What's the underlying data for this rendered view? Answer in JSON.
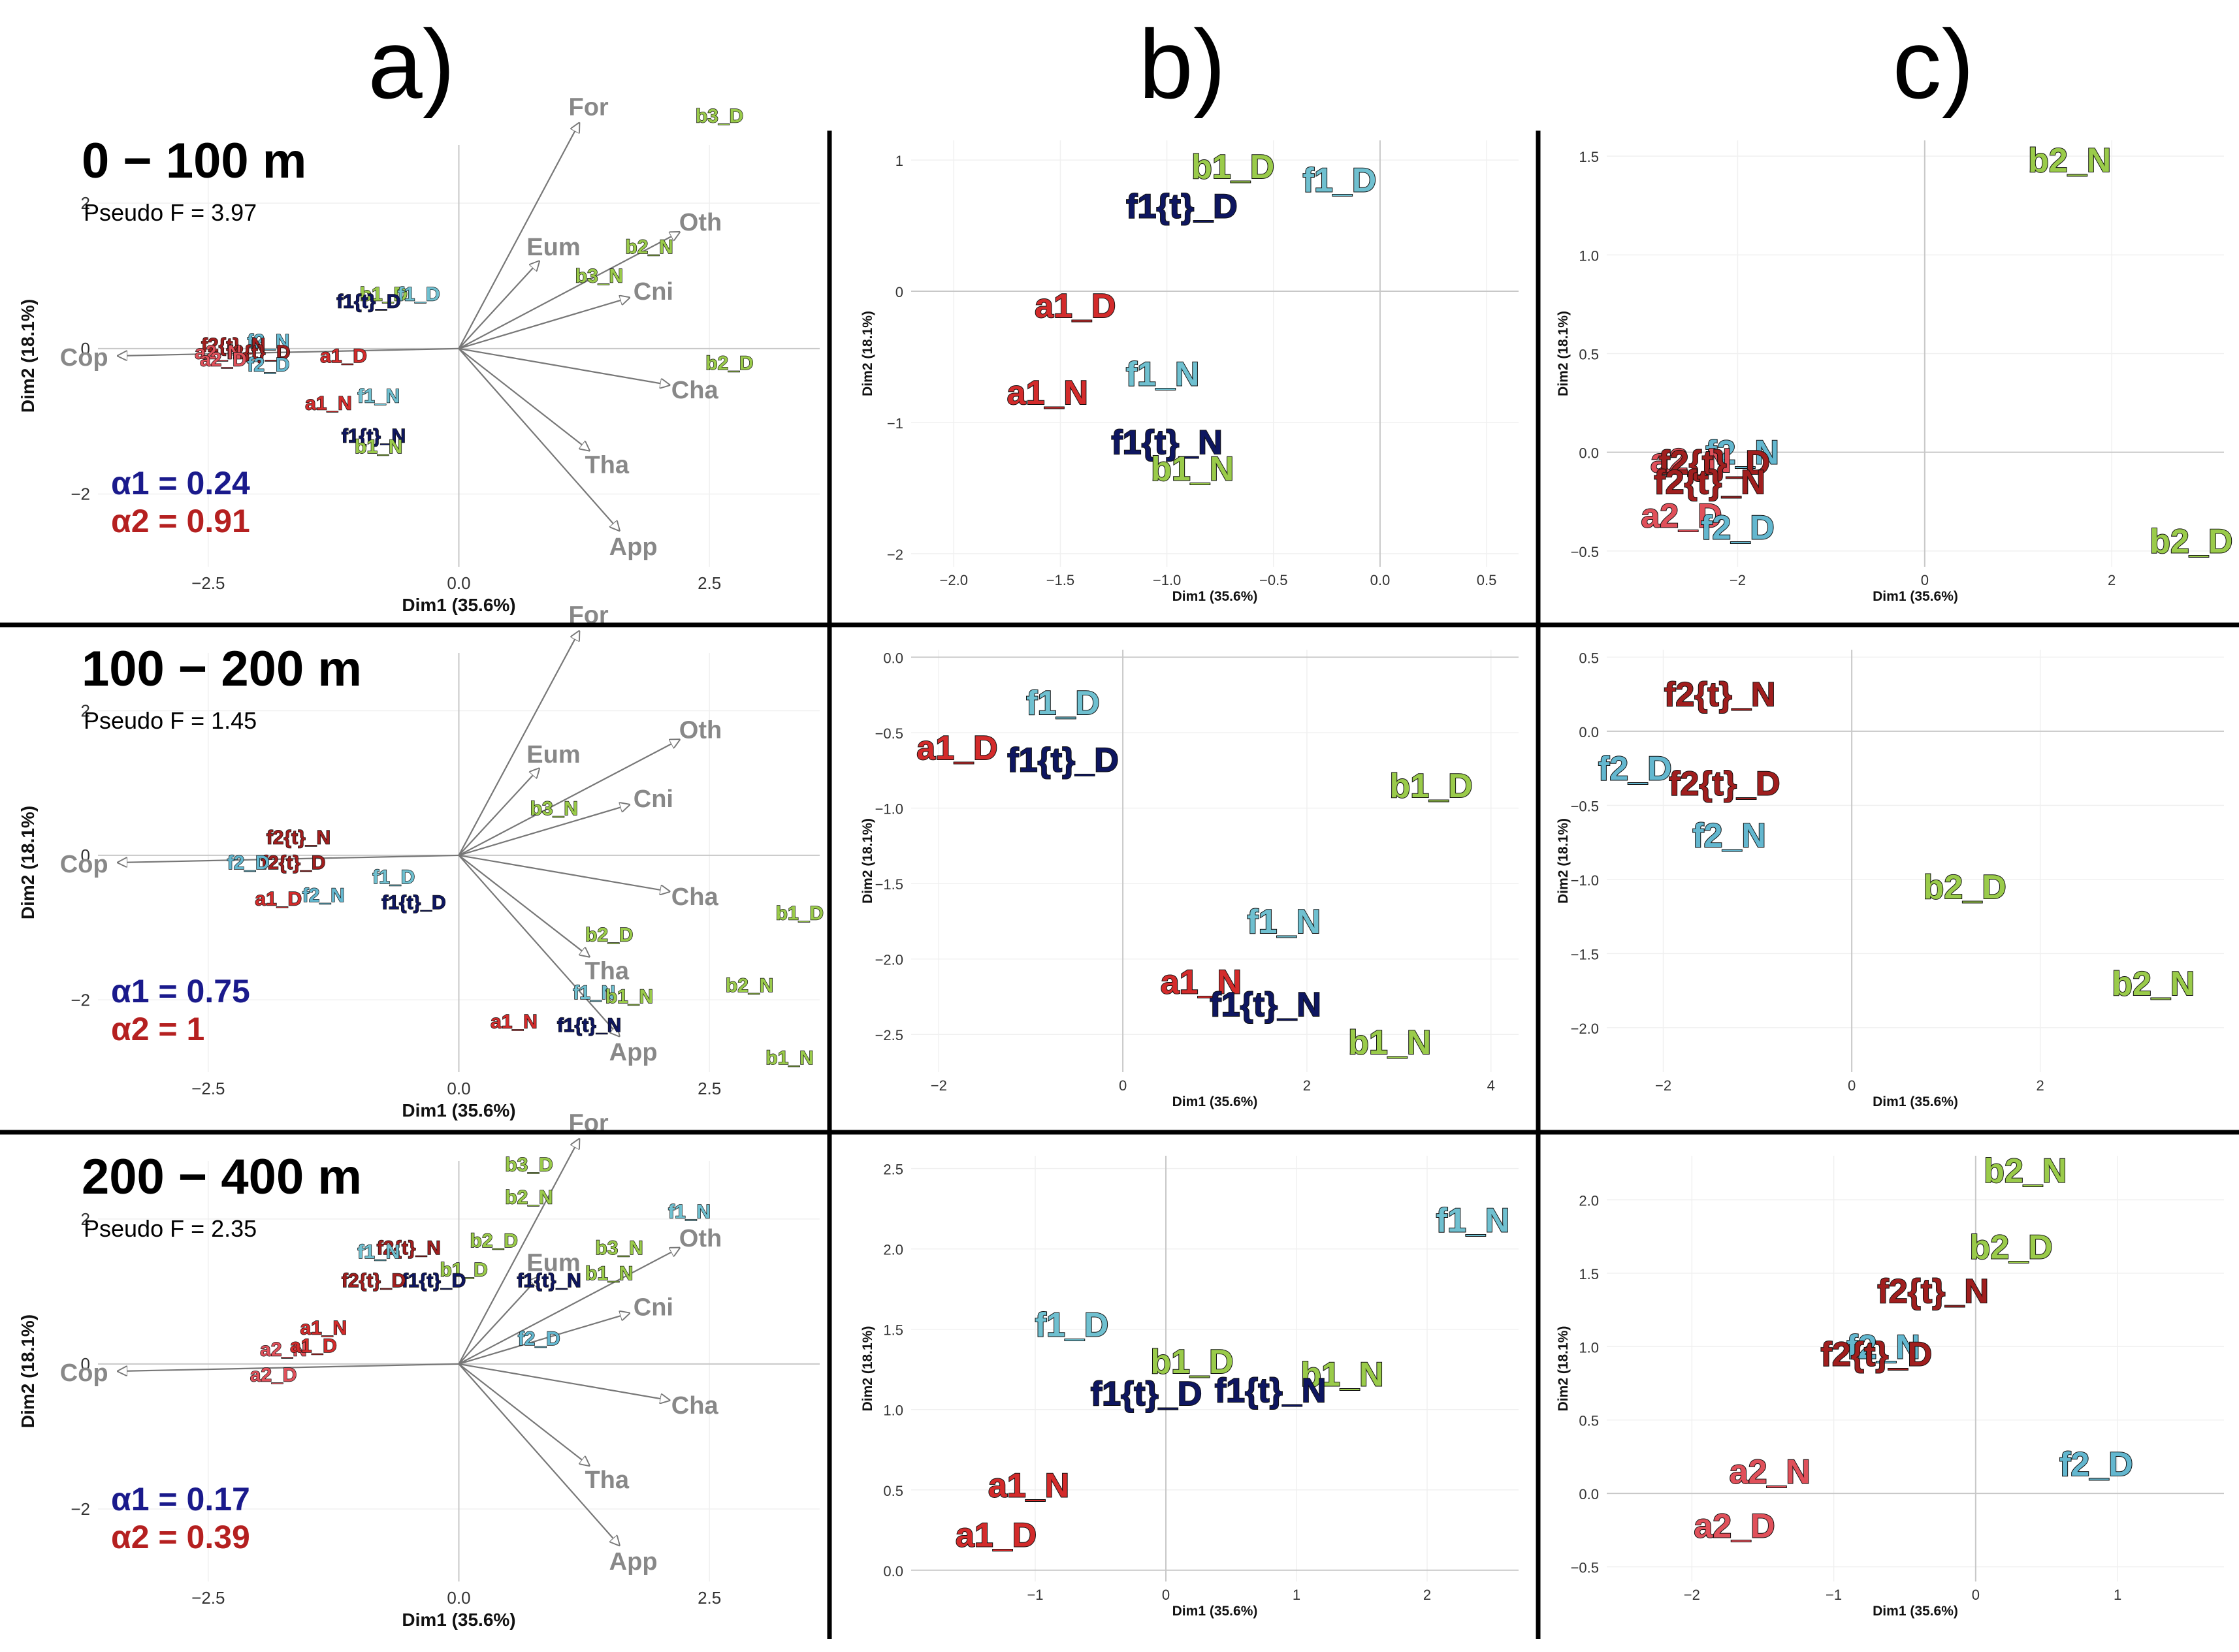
{
  "column_headers": [
    "a)",
    "b)",
    "c)"
  ],
  "colors": {
    "a1": "#d32b2b",
    "a2": "#e0505a",
    "f1": "#6fc0d0",
    "f1t": "#0e1660",
    "f2": "#63b7cf",
    "f2t": "#a01e1e",
    "b": "#9acb4a",
    "vector": "#888888",
    "alpha1": "#1a1a8c",
    "alpha2": "#b52020"
  },
  "chart_data": [
    {
      "id": "a_0_100",
      "type": "scatter",
      "subtype": "biplot",
      "title": "0 − 100 m",
      "pseudo_f": "Pseudo F = 3.97",
      "alpha1": "α1 = 0.24",
      "alpha2": "α2 = 0.91",
      "xlabel": "Dim1 (35.6%)",
      "ylabel": "Dim2 (18.1%)",
      "xlim": [
        -3.6,
        3.6
      ],
      "ylim": [
        -3.0,
        2.8
      ],
      "xticks": [
        -2.5,
        0.0,
        2.5
      ],
      "xtick_labels": [
        "−2.5",
        "0.0",
        "2.5"
      ],
      "yticks": [
        2,
        0,
        -2
      ],
      "ytick_labels": [
        "2",
        "0",
        "−2"
      ],
      "vectors": [
        {
          "label": "For",
          "x": 1.2,
          "y": 3.1
        },
        {
          "label": "Eum",
          "x": 0.8,
          "y": 1.2
        },
        {
          "label": "Oth",
          "x": 2.2,
          "y": 1.6
        },
        {
          "label": "Cni",
          "x": 1.7,
          "y": 0.7
        },
        {
          "label": "Cha",
          "x": 2.1,
          "y": -0.5
        },
        {
          "label": "Tha",
          "x": 1.3,
          "y": -1.4
        },
        {
          "label": "App",
          "x": 1.6,
          "y": -2.5
        },
        {
          "label": "Cop",
          "x": -3.4,
          "y": -0.1
        }
      ],
      "points": [
        {
          "label": "b3_D",
          "x": 2.6,
          "y": 3.2,
          "g": "b"
        },
        {
          "label": "b2_N",
          "x": 1.9,
          "y": 1.4,
          "g": "b"
        },
        {
          "label": "b3_N",
          "x": 1.4,
          "y": 1.0,
          "g": "b"
        },
        {
          "label": "b2_D",
          "x": 2.7,
          "y": -0.2,
          "g": "b"
        },
        {
          "label": "b1_D",
          "x": -0.75,
          "y": 0.75,
          "g": "b"
        },
        {
          "label": "f1_D",
          "x": -0.4,
          "y": 0.75,
          "g": "f1"
        },
        {
          "label": "f1{t}_D",
          "x": -0.9,
          "y": 0.65,
          "g": "f1t"
        },
        {
          "label": "a1_D",
          "x": -1.15,
          "y": -0.1,
          "g": "a1"
        },
        {
          "label": "a1_N",
          "x": -1.3,
          "y": -0.75,
          "g": "a1"
        },
        {
          "label": "f1_N",
          "x": -0.8,
          "y": -0.65,
          "g": "f1"
        },
        {
          "label": "f1{t}_N",
          "x": -0.85,
          "y": -1.2,
          "g": "f1t"
        },
        {
          "label": "b1_N",
          "x": -0.8,
          "y": -1.35,
          "g": "b"
        },
        {
          "label": "f2_N",
          "x": -1.9,
          "y": 0.1,
          "g": "f2"
        },
        {
          "label": "f2{t}_N",
          "x": -2.25,
          "y": 0.05,
          "g": "f2t"
        },
        {
          "label": "f2{t}_D",
          "x": -2.0,
          "y": -0.05,
          "g": "f2t"
        },
        {
          "label": "a2_N",
          "x": -2.4,
          "y": -0.05,
          "g": "a2"
        },
        {
          "label": "a2_D",
          "x": -2.35,
          "y": -0.15,
          "g": "a2"
        },
        {
          "label": "f2_D",
          "x": -1.9,
          "y": -0.22,
          "g": "f2"
        }
      ]
    },
    {
      "id": "b_0_100",
      "type": "scatter",
      "xlabel": "Dim1 (35.6%)",
      "ylabel": "Dim2 (18.1%)",
      "xlim": [
        -2.2,
        0.65
      ],
      "ylim": [
        -2.1,
        1.15
      ],
      "xticks": [
        -2.0,
        -1.5,
        -1.0,
        -0.5,
        0.0,
        0.5
      ],
      "xtick_labels": [
        "−2.0",
        "−1.5",
        "−1.0",
        "−0.5",
        "0.0",
        "0.5"
      ],
      "yticks": [
        1,
        0,
        -1,
        -2
      ],
      "ytick_labels": [
        "1",
        "0",
        "−1",
        "−2"
      ],
      "points": [
        {
          "label": "b1_D",
          "x": -0.69,
          "y": 0.95,
          "g": "b"
        },
        {
          "label": "f1_D",
          "x": -0.19,
          "y": 0.85,
          "g": "f1"
        },
        {
          "label": "f1{t}_D",
          "x": -0.93,
          "y": 0.65,
          "g": "f1t"
        },
        {
          "label": "a1_D",
          "x": -1.43,
          "y": -0.11,
          "g": "a1"
        },
        {
          "label": "f1_N",
          "x": -1.02,
          "y": -0.63,
          "g": "f1"
        },
        {
          "label": "a1_N",
          "x": -1.56,
          "y": -0.77,
          "g": "a1"
        },
        {
          "label": "f1{t}_N",
          "x": -1.0,
          "y": -1.15,
          "g": "f1t"
        },
        {
          "label": "b1_N",
          "x": -0.88,
          "y": -1.35,
          "g": "b"
        }
      ]
    },
    {
      "id": "c_0_100",
      "type": "scatter",
      "xlabel": "Dim1 (35.6%)",
      "ylabel": "Dim2 (18.1%)",
      "xlim": [
        -3.4,
        3.2
      ],
      "ylim": [
        -0.58,
        1.58
      ],
      "xticks": [
        -2,
        0,
        2
      ],
      "xtick_labels": [
        "−2",
        "0",
        "2"
      ],
      "yticks": [
        1.5,
        1.0,
        0.5,
        0.0,
        -0.5
      ],
      "ytick_labels": [
        "1.5",
        "1.0",
        "0.5",
        "0.0",
        "−0.5"
      ],
      "points": [
        {
          "label": "b2_N",
          "x": 1.55,
          "y": 1.48,
          "g": "b"
        },
        {
          "label": "b2_D",
          "x": 2.85,
          "y": -0.45,
          "g": "b"
        },
        {
          "label": "f2_N",
          "x": -1.95,
          "y": 0.0,
          "g": "f2"
        },
        {
          "label": "a2_N",
          "x": -2.5,
          "y": -0.04,
          "g": "a2"
        },
        {
          "label": "f2{t}_D",
          "x": -2.25,
          "y": -0.05,
          "g": "f2t"
        },
        {
          "label": "f2{t}_N",
          "x": -2.3,
          "y": -0.15,
          "g": "f2t"
        },
        {
          "label": "a2_D",
          "x": -2.6,
          "y": -0.32,
          "g": "a2"
        },
        {
          "label": "f2_D",
          "x": -2.0,
          "y": -0.38,
          "g": "f2"
        }
      ]
    },
    {
      "id": "a_100_200",
      "type": "scatter",
      "subtype": "biplot",
      "title": "100 − 200 m",
      "pseudo_f": "Pseudo F = 1.45",
      "alpha1": "α1 = 0.75",
      "alpha2": "α2 = 1",
      "xlabel": "Dim1 (35.6%)",
      "ylabel": "Dim2 (18.1%)",
      "xlim": [
        -3.6,
        3.6
      ],
      "ylim": [
        -3.0,
        2.8
      ],
      "xticks": [
        -2.5,
        0.0,
        2.5
      ],
      "xtick_labels": [
        "−2.5",
        "0.0",
        "2.5"
      ],
      "yticks": [
        2,
        0,
        -2
      ],
      "ytick_labels": [
        "2",
        "0",
        "−2"
      ],
      "vectors": [
        {
          "label": "For",
          "x": 1.2,
          "y": 3.1
        },
        {
          "label": "Eum",
          "x": 0.8,
          "y": 1.2
        },
        {
          "label": "Oth",
          "x": 2.2,
          "y": 1.6
        },
        {
          "label": "Cni",
          "x": 1.7,
          "y": 0.7
        },
        {
          "label": "Cha",
          "x": 2.1,
          "y": -0.5
        },
        {
          "label": "Tha",
          "x": 1.3,
          "y": -1.4
        },
        {
          "label": "App",
          "x": 1.6,
          "y": -2.5
        },
        {
          "label": "Cop",
          "x": -3.4,
          "y": -0.1
        }
      ],
      "points": [
        {
          "label": "b3_N",
          "x": 0.95,
          "y": 0.65,
          "g": "b"
        },
        {
          "label": "b1_D",
          "x": 3.4,
          "y": -0.8,
          "g": "b"
        },
        {
          "label": "b2_D",
          "x": 1.5,
          "y": -1.1,
          "g": "b"
        },
        {
          "label": "b2_N",
          "x": 2.9,
          "y": -1.8,
          "g": "b"
        },
        {
          "label": "b1_N",
          "x": 3.3,
          "y": -2.8,
          "g": "b"
        },
        {
          "label": "f2{t}_N",
          "x": -1.6,
          "y": 0.25,
          "g": "f2t"
        },
        {
          "label": "f2{t}_D",
          "x": -1.65,
          "y": -0.1,
          "g": "f2t"
        },
        {
          "label": "f2_D",
          "x": -2.1,
          "y": -0.1,
          "g": "f2"
        },
        {
          "label": "a1_D",
          "x": -1.8,
          "y": -0.6,
          "g": "a1"
        },
        {
          "label": "f2_N",
          "x": -1.35,
          "y": -0.55,
          "g": "f2"
        },
        {
          "label": "f1_D",
          "x": -0.65,
          "y": -0.3,
          "g": "f1"
        },
        {
          "label": "f1{t}_D",
          "x": -0.45,
          "y": -0.65,
          "g": "f1t"
        },
        {
          "label": "f1_N",
          "x": 1.35,
          "y": -1.9,
          "g": "f1"
        },
        {
          "label": "b1_N",
          "x": 1.7,
          "y": -1.95,
          "g": "b"
        },
        {
          "label": "a1_N",
          "x": 0.55,
          "y": -2.3,
          "g": "a1"
        },
        {
          "label": "f1{t}_N",
          "x": 1.3,
          "y": -2.35,
          "g": "f1t"
        }
      ]
    },
    {
      "id": "b_100_200",
      "type": "scatter",
      "xlabel": "Dim1 (35.6%)",
      "ylabel": "Dim2 (18.1%)",
      "xlim": [
        -2.3,
        4.3
      ],
      "ylim": [
        -2.75,
        0.05
      ],
      "xticks": [
        -2,
        0,
        2,
        4
      ],
      "xtick_labels": [
        "−2",
        "0",
        "2",
        "4"
      ],
      "yticks": [
        0.0,
        -0.5,
        -1.0,
        -1.5,
        -2.0,
        -2.5
      ],
      "ytick_labels": [
        "0.0",
        "−0.5",
        "−1.0",
        "−1.5",
        "−2.0",
        "−2.5"
      ],
      "points": [
        {
          "label": "f1_D",
          "x": -0.65,
          "y": -0.3,
          "g": "f1"
        },
        {
          "label": "a1_D",
          "x": -1.8,
          "y": -0.6,
          "g": "a1"
        },
        {
          "label": "f1{t}_D",
          "x": -0.65,
          "y": -0.68,
          "g": "f1t"
        },
        {
          "label": "b1_D",
          "x": 3.35,
          "y": -0.85,
          "g": "b"
        },
        {
          "label": "f1_N",
          "x": 1.75,
          "y": -1.75,
          "g": "f1"
        },
        {
          "label": "a1_N",
          "x": 0.85,
          "y": -2.15,
          "g": "a1"
        },
        {
          "label": "f1{t}_N",
          "x": 1.55,
          "y": -2.3,
          "g": "f1t"
        },
        {
          "label": "b1_N",
          "x": 2.9,
          "y": -2.55,
          "g": "b"
        }
      ]
    },
    {
      "id": "c_100_200",
      "type": "scatter",
      "xlabel": "Dim1 (35.6%)",
      "ylabel": "Dim2 (18.1%)",
      "xlim": [
        -2.6,
        3.95
      ],
      "ylim": [
        -2.3,
        0.55
      ],
      "xticks": [
        -2,
        0,
        2
      ],
      "xtick_labels": [
        "−2",
        "0",
        "2"
      ],
      "yticks": [
        0.5,
        0.0,
        -0.5,
        -1.0,
        -1.5,
        -2.0
      ],
      "ytick_labels": [
        "0.5",
        "0.0",
        "−0.5",
        "−1.0",
        "−1.5",
        "−2.0"
      ],
      "points": [
        {
          "label": "f2{t}_N",
          "x": -1.4,
          "y": 0.25,
          "g": "f2t"
        },
        {
          "label": "f2_D",
          "x": -2.3,
          "y": -0.25,
          "g": "f2"
        },
        {
          "label": "f2{t}_D",
          "x": -1.35,
          "y": -0.35,
          "g": "f2t"
        },
        {
          "label": "f2_N",
          "x": -1.3,
          "y": -0.7,
          "g": "f2"
        },
        {
          "label": "b2_D",
          "x": 1.2,
          "y": -1.05,
          "g": "b"
        },
        {
          "label": "b2_N",
          "x": 3.2,
          "y": -1.7,
          "g": "b"
        }
      ]
    },
    {
      "id": "a_200_400",
      "type": "scatter",
      "subtype": "biplot",
      "title": "200 − 400 m",
      "pseudo_f": "Pseudo F = 2.35",
      "alpha1": "α1 = 0.17",
      "alpha2": "α2 = 0.39",
      "xlabel": "Dim1 (35.6%)",
      "ylabel": "Dim2 (18.1%)",
      "xlim": [
        -3.6,
        3.6
      ],
      "ylim": [
        -3.0,
        2.8
      ],
      "xticks": [
        -2.5,
        0.0,
        2.5
      ],
      "xtick_labels": [
        "−2.5",
        "0.0",
        "2.5"
      ],
      "yticks": [
        2,
        0,
        -2
      ],
      "ytick_labels": [
        "2",
        "0",
        "−2"
      ],
      "vectors": [
        {
          "label": "For",
          "x": 1.2,
          "y": 3.1
        },
        {
          "label": "Eum",
          "x": 0.8,
          "y": 1.2
        },
        {
          "label": "Oth",
          "x": 2.2,
          "y": 1.6
        },
        {
          "label": "Cni",
          "x": 1.7,
          "y": 0.7
        },
        {
          "label": "Cha",
          "x": 2.1,
          "y": -0.5
        },
        {
          "label": "Tha",
          "x": 1.3,
          "y": -1.4
        },
        {
          "label": "App",
          "x": 1.6,
          "y": -2.5
        },
        {
          "label": "Cop",
          "x": -3.4,
          "y": -0.1
        }
      ],
      "points": [
        {
          "label": "b3_D",
          "x": 0.7,
          "y": 2.75,
          "g": "b"
        },
        {
          "label": "b2_N",
          "x": 0.7,
          "y": 2.3,
          "g": "b"
        },
        {
          "label": "f1_N",
          "x": 2.3,
          "y": 2.1,
          "g": "f1"
        },
        {
          "label": "b2_D",
          "x": 0.35,
          "y": 1.7,
          "g": "b"
        },
        {
          "label": "b3_N",
          "x": 1.6,
          "y": 1.6,
          "g": "b"
        },
        {
          "label": "b1_N",
          "x": 1.5,
          "y": 1.25,
          "g": "b"
        },
        {
          "label": "b1_D",
          "x": 0.05,
          "y": 1.3,
          "g": "b"
        },
        {
          "label": "f1{t}_N",
          "x": 0.9,
          "y": 1.15,
          "g": "f1t"
        },
        {
          "label": "f1{t}_D",
          "x": -0.25,
          "y": 1.15,
          "g": "f1t"
        },
        {
          "label": "f2{t}_N",
          "x": -0.5,
          "y": 1.6,
          "g": "f2t"
        },
        {
          "label": "f1_N",
          "x": -0.8,
          "y": 1.55,
          "g": "f1"
        },
        {
          "label": "f2{t}_D",
          "x": -0.85,
          "y": 1.15,
          "g": "f2t"
        },
        {
          "label": "f2_D",
          "x": 0.8,
          "y": 0.35,
          "g": "f2"
        },
        {
          "label": "a1_N",
          "x": -1.35,
          "y": 0.5,
          "g": "a1"
        },
        {
          "label": "a2_N",
          "x": -1.75,
          "y": 0.2,
          "g": "a2"
        },
        {
          "label": "a1_D",
          "x": -1.45,
          "y": 0.25,
          "g": "a1"
        },
        {
          "label": "a2_D",
          "x": -1.85,
          "y": -0.15,
          "g": "a2"
        }
      ]
    },
    {
      "id": "b_200_400",
      "type": "scatter",
      "xlabel": "Dim1 (35.6%)",
      "ylabel": "Dim2 (18.1%)",
      "xlim": [
        -1.95,
        2.7
      ],
      "ylim": [
        -0.07,
        2.58
      ],
      "xticks": [
        -1,
        0,
        1,
        2
      ],
      "xtick_labels": [
        "−1",
        "0",
        "1",
        "2"
      ],
      "yticks": [
        2.5,
        2.0,
        1.5,
        1.0,
        0.5,
        0.0
      ],
      "ytick_labels": [
        "2.5",
        "2.0",
        "1.5",
        "1.0",
        "0.5",
        "0.0"
      ],
      "points": [
        {
          "label": "f1_N",
          "x": 2.35,
          "y": 2.18,
          "g": "f1"
        },
        {
          "label": "f1_D",
          "x": -0.72,
          "y": 1.53,
          "g": "f1"
        },
        {
          "label": "b1_D",
          "x": 0.2,
          "y": 1.3,
          "g": "b"
        },
        {
          "label": "b1_N",
          "x": 1.35,
          "y": 1.22,
          "g": "b"
        },
        {
          "label": "f1{t}_D",
          "x": -0.15,
          "y": 1.1,
          "g": "f1t"
        },
        {
          "label": "f1{t}_N",
          "x": 0.8,
          "y": 1.12,
          "g": "f1t"
        },
        {
          "label": "a1_N",
          "x": -1.05,
          "y": 0.53,
          "g": "a1"
        },
        {
          "label": "a1_D",
          "x": -1.3,
          "y": 0.22,
          "g": "a1"
        }
      ]
    },
    {
      "id": "c_200_400",
      "type": "scatter",
      "xlabel": "Dim1 (35.6%)",
      "ylabel": "Dim2 (18.1%)",
      "xlim": [
        -2.6,
        1.75
      ],
      "ylim": [
        -0.6,
        2.3
      ],
      "xticks": [
        -2,
        -1,
        0,
        1
      ],
      "xtick_labels": [
        "−2",
        "−1",
        "0",
        "1"
      ],
      "yticks": [
        2.0,
        1.5,
        1.0,
        0.5,
        0.0,
        -0.5
      ],
      "ytick_labels": [
        "2.0",
        "1.5",
        "1.0",
        "0.5",
        "0.0",
        "−0.5"
      ],
      "points": [
        {
          "label": "b2_N",
          "x": 0.35,
          "y": 2.2,
          "g": "b"
        },
        {
          "label": "b2_D",
          "x": 0.25,
          "y": 1.68,
          "g": "b"
        },
        {
          "label": "f2{t}_N",
          "x": -0.3,
          "y": 1.38,
          "g": "f2t"
        },
        {
          "label": "f2_N",
          "x": -0.65,
          "y": 1.0,
          "g": "f2"
        },
        {
          "label": "f2{t}_D",
          "x": -0.7,
          "y": 0.95,
          "g": "f2t"
        },
        {
          "label": "a2_N",
          "x": -1.45,
          "y": 0.15,
          "g": "a2"
        },
        {
          "label": "f2_D",
          "x": 0.85,
          "y": 0.2,
          "g": "f2"
        },
        {
          "label": "a2_D",
          "x": -1.7,
          "y": -0.22,
          "g": "a2"
        }
      ]
    }
  ]
}
